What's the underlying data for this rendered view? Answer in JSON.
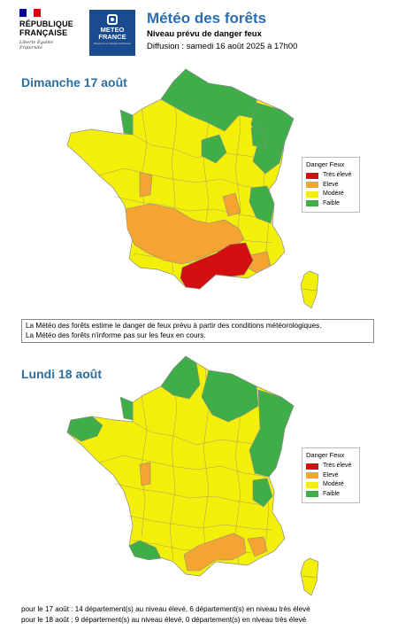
{
  "header": {
    "republique_name": "RÉPUBLIQUE FRANÇAISE",
    "republique_motto": "Liberté Égalité Fraternité",
    "meteo_logo_name": "METEO FRANCE",
    "meteo_logo_tagline": "Toujours un temps d'avance",
    "title": "Météo des forêts",
    "subtitle": "Niveau prévu de danger feux",
    "diffusion": "Diffusion : samedi 16 août 2025 à 17h00"
  },
  "colors": {
    "tres_eleve": "#d40f0f",
    "eleve": "#f5a331",
    "modere": "#f4ef08",
    "faible": "#3fad48",
    "title_blue": "#2a6db0",
    "day_blue": "#2e6e9e",
    "border": "#8c8c8c"
  },
  "legend": {
    "title": "Danger Feux",
    "items": [
      {
        "label": "Très élevé",
        "color": "#d40f0f"
      },
      {
        "label": "Elevé",
        "color": "#f5a331"
      },
      {
        "label": "Modéré",
        "color": "#f4ef08"
      },
      {
        "label": "Faible",
        "color": "#3fad48"
      }
    ]
  },
  "days": [
    {
      "label": "Dimanche 17 août",
      "levels": [
        "faible",
        "eleve",
        "tres_eleve",
        "eleve"
      ]
    },
    {
      "label": "Lundi 18 août",
      "levels": [
        "faible",
        "modere",
        "eleve",
        "faible"
      ]
    }
  ],
  "note": {
    "line1": "La Météo des forêts estime le danger de feux prévu à partir des conditions météorologiques.",
    "line2": "La Météo des forêts n'informe pas sur les feux en cours."
  },
  "footer": {
    "line1": "pour le 17 août : 14 département(s) au niveau élevé, 6 département(s) en niveau très élevé",
    "line2": "pour le 18 août : 9 département(s) au niveau élevé, 0 département(s) en niveau très élevé"
  }
}
